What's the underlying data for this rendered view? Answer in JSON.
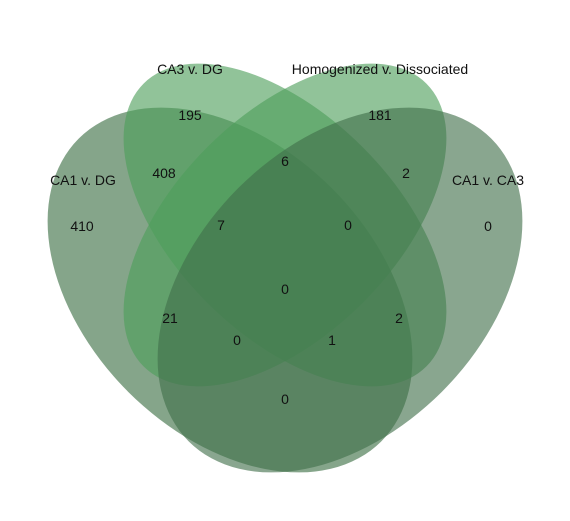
{
  "sets": [
    {
      "name": "CA1 v. DG",
      "color": "#4b7a53"
    },
    {
      "name": "CA3 v. DG",
      "color": "#4e9e5a"
    },
    {
      "name": "Homogenized v. Dissociated",
      "color": "#4e9e5a"
    },
    {
      "name": "CA1 v. CA3",
      "color": "#41704a"
    }
  ],
  "regions": [
    {
      "sets": [
        "CA1 v. DG"
      ],
      "count": "410"
    },
    {
      "sets": [
        "CA3 v. DG"
      ],
      "count": "195"
    },
    {
      "sets": [
        "Homogenized v. Dissociated"
      ],
      "count": "181"
    },
    {
      "sets": [
        "CA1 v. CA3"
      ],
      "count": "0"
    },
    {
      "sets": [
        "CA1 v. DG",
        "CA3 v. DG"
      ],
      "count": "408"
    },
    {
      "sets": [
        "CA3 v. DG",
        "Homogenized v. Dissociated"
      ],
      "count": "6"
    },
    {
      "sets": [
        "Homogenized v. Dissociated",
        "CA1 v. CA3"
      ],
      "count": "2"
    },
    {
      "sets": [
        "CA1 v. DG",
        "CA3 v. DG",
        "Homogenized v. Dissociated"
      ],
      "count": "7"
    },
    {
      "sets": [
        "CA3 v. DG",
        "Homogenized v. Dissociated",
        "CA1 v. CA3"
      ],
      "count": "0"
    },
    {
      "sets": [
        "CA1 v. DG",
        "CA3 v. DG",
        "Homogenized v. Dissociated",
        "CA1 v. CA3"
      ],
      "count": "0"
    },
    {
      "sets": [
        "CA1 v. DG",
        "Homogenized v. Dissociated"
      ],
      "count": "21"
    },
    {
      "sets": [
        "CA3 v. DG",
        "CA1 v. CA3"
      ],
      "count": "2"
    },
    {
      "sets": [
        "CA1 v. DG",
        "Homogenized v. Dissociated",
        "CA1 v. CA3"
      ],
      "count": "0"
    },
    {
      "sets": [
        "CA1 v. DG",
        "CA3 v. DG",
        "CA1 v. CA3"
      ],
      "count": "1"
    },
    {
      "sets": [
        "CA1 v. DG",
        "CA1 v. CA3"
      ],
      "count": "0"
    }
  ]
}
